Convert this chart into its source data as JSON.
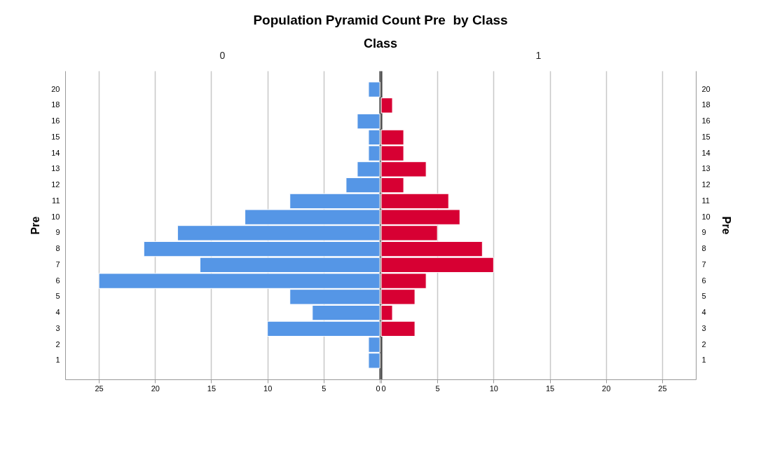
{
  "chart_data": [
    {
      "type": "bar",
      "orientation": "horizontal",
      "title": "Population Pyramid Count Pre  by Class",
      "subtitle": "Class",
      "ylabel": "Pre",
      "categories": [
        "20",
        "18",
        "16",
        "15",
        "14",
        "13",
        "12",
        "11",
        "10",
        "9",
        "8",
        "7",
        "6",
        "5",
        "4",
        "3",
        "2",
        "1"
      ],
      "series": [
        {
          "name": "0",
          "color": "#5596e6",
          "values": [
            1,
            null,
            2,
            1,
            1,
            2,
            3,
            8,
            12,
            18,
            21,
            16,
            25,
            8,
            6,
            10,
            1,
            1
          ]
        }
      ],
      "xlim": [
        28,
        0
      ],
      "xticks": [
        25,
        20,
        15,
        10,
        5,
        0
      ],
      "grid": "x"
    },
    {
      "type": "bar",
      "orientation": "horizontal",
      "ylabel": "Pre",
      "categories": [
        "20",
        "18",
        "16",
        "15",
        "14",
        "13",
        "12",
        "11",
        "10",
        "9",
        "8",
        "7",
        "6",
        "5",
        "4",
        "3",
        "2",
        "1"
      ],
      "series": [
        {
          "name": "1",
          "color": "#d70033",
          "values": [
            null,
            1,
            null,
            2,
            2,
            4,
            2,
            6,
            7,
            5,
            9,
            10,
            4,
            3,
            1,
            3,
            null,
            null
          ]
        }
      ],
      "xlim": [
        0,
        28
      ],
      "xticks": [
        0,
        5,
        10,
        15,
        20,
        25
      ],
      "grid": "x"
    }
  ]
}
